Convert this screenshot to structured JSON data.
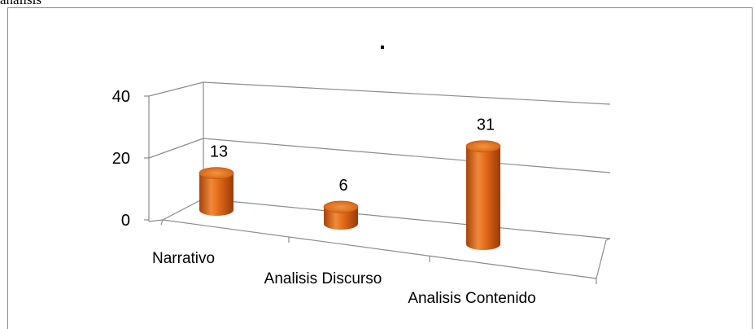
{
  "page": {
    "fragment_text": "análisis"
  },
  "chart_data": {
    "type": "bar",
    "style": "3d-cylinder",
    "title": ".",
    "categories": [
      "Narrativo",
      "Analisis Discurso",
      "Analisis Contenido"
    ],
    "values": [
      13,
      6,
      31
    ],
    "data_labels": [
      "13",
      "6",
      "31"
    ],
    "y_ticks": [
      "0",
      "20",
      "40"
    ],
    "ylim": [
      0,
      40
    ],
    "xlabel": "",
    "ylabel": "",
    "grid": true,
    "legend": "none",
    "bar_color": "#e46c1b"
  }
}
